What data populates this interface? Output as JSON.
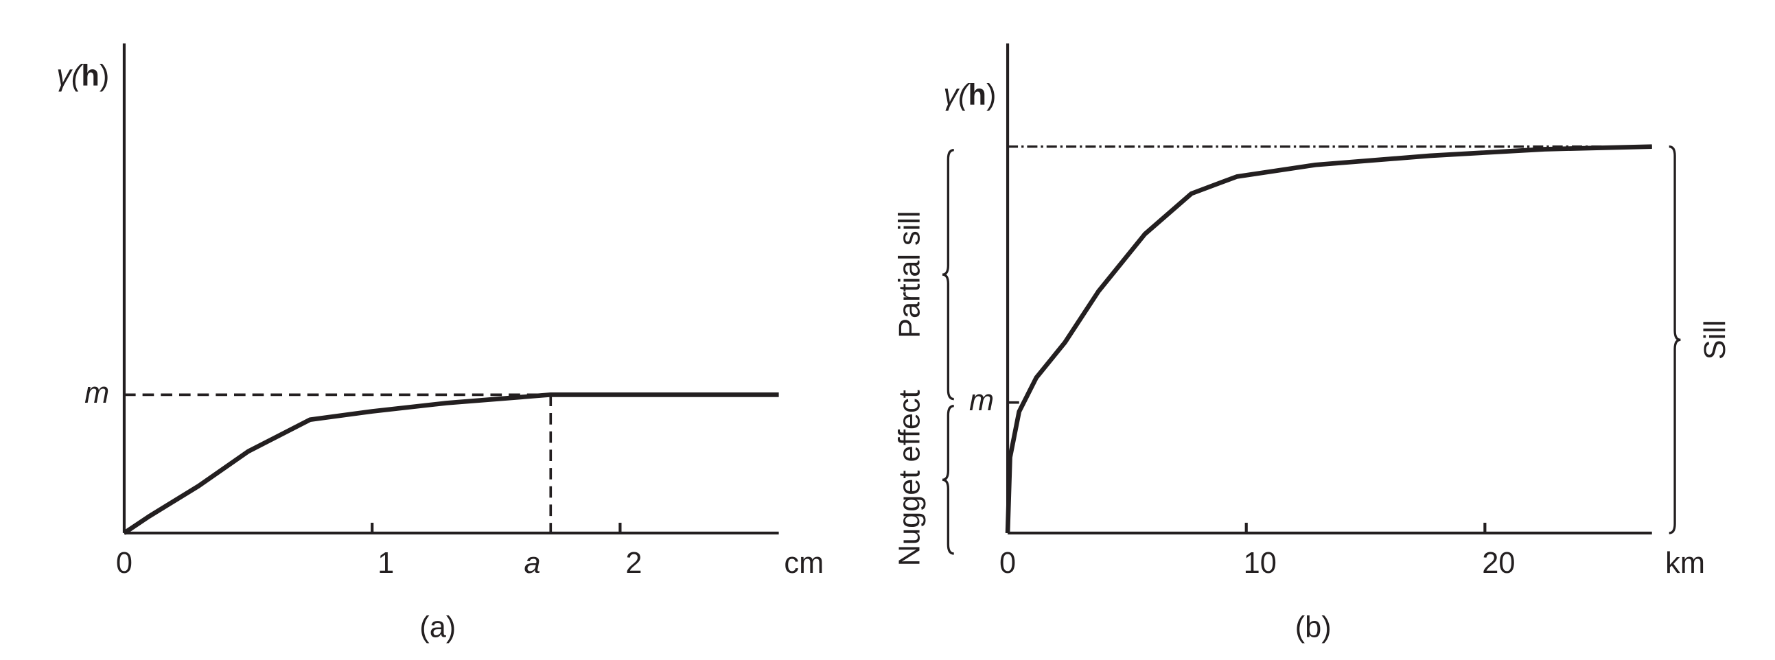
{
  "chart_data": [
    {
      "type": "line",
      "ylabel_parts": [
        "γ(",
        "h",
        ")"
      ],
      "xlabel": "cm",
      "caption": "(a)",
      "x": [
        0,
        0.1,
        0.3,
        0.5,
        0.75,
        1,
        1.3,
        1.72,
        2,
        2.64
      ],
      "values": [
        0,
        0.12,
        0.34,
        0.59,
        0.82,
        0.88,
        0.94,
        1,
        1,
        1
      ],
      "xlim": [
        0,
        2.64
      ],
      "ylim": [
        0,
        3.54
      ],
      "xticks": [
        0,
        1,
        {
          "value": 1.72,
          "label": "a"
        },
        2
      ],
      "yticks": [
        {
          "value": 1,
          "label": "m"
        }
      ]
    },
    {
      "type": "line",
      "ylabel_parts": [
        "γ(",
        "h",
        ")"
      ],
      "xlabel": "km",
      "caption": "(b)",
      "x": [
        0,
        0.1,
        0.48,
        1.2,
        2.4,
        3.8,
        5.75,
        7.7,
        9.6,
        12.9,
        17.7,
        22.5,
        27
      ],
      "values": [
        0,
        0.58,
        0.93,
        1.19,
        1.46,
        1.85,
        2.29,
        2.6,
        2.73,
        2.82,
        2.89,
        2.94,
        2.96
      ],
      "xlim": [
        0,
        27
      ],
      "ylim": [
        0,
        3.75
      ],
      "xticks": [
        0,
        10,
        20
      ],
      "yticks": [
        {
          "value": 1,
          "label": "m"
        }
      ],
      "sill": 2.96,
      "annotations": [
        {
          "text": "Partial sill",
          "from": 1,
          "to": 2.96,
          "side": "left"
        },
        {
          "text": "Nugget effect",
          "from": 0,
          "to": 1,
          "side": "left"
        },
        {
          "text": "Sill",
          "from": 0,
          "to": 2.96,
          "side": "right"
        }
      ]
    }
  ]
}
